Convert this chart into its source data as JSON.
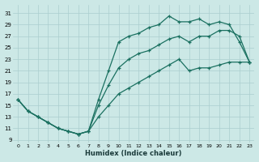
{
  "xlabel": "Humidex (Indice chaleur)",
  "bg_color": "#cce8e6",
  "grid_color": "#aacece",
  "line_color": "#1a7060",
  "xlim": [
    -0.5,
    23.5
  ],
  "ylim": [
    8.5,
    32.5
  ],
  "xticks": [
    0,
    1,
    2,
    3,
    4,
    5,
    6,
    7,
    8,
    9,
    10,
    11,
    12,
    13,
    14,
    15,
    16,
    17,
    18,
    19,
    20,
    21,
    22,
    23
  ],
  "yticks": [
    9,
    11,
    13,
    15,
    17,
    19,
    21,
    23,
    25,
    27,
    29,
    31
  ],
  "upper_x": [
    0,
    1,
    2,
    3,
    4,
    5,
    6,
    7,
    8,
    9,
    10,
    11,
    12,
    13,
    14,
    15,
    16,
    17,
    18,
    19,
    20,
    21,
    22,
    23
  ],
  "upper_y": [
    16,
    14,
    13,
    12,
    11,
    10.5,
    10,
    10.5,
    16,
    21,
    26,
    27,
    27.5,
    28.5,
    29,
    30.5,
    29.5,
    29.5,
    30,
    29,
    29.5,
    29,
    26,
    22.5
  ],
  "mid_x": [
    0,
    1,
    2,
    3,
    4,
    5,
    6,
    7,
    8,
    9,
    10,
    11,
    12,
    13,
    14,
    15,
    16,
    17,
    18,
    19,
    20,
    21,
    22,
    23
  ],
  "mid_y": [
    16,
    14,
    13,
    12,
    11,
    10.5,
    10,
    10.5,
    15,
    18.5,
    21.5,
    23,
    24,
    24.5,
    25.5,
    26.5,
    27,
    26,
    27,
    27,
    28,
    28,
    27,
    22.5
  ],
  "low_x": [
    0,
    1,
    2,
    3,
    4,
    5,
    6,
    7,
    8,
    9,
    10,
    11,
    12,
    13,
    14,
    15,
    16,
    17,
    18,
    19,
    20,
    21,
    22,
    23
  ],
  "low_y": [
    16,
    14,
    13,
    12,
    11,
    10.5,
    10,
    10.5,
    13,
    15,
    17,
    18,
    19,
    20,
    21,
    22,
    23,
    21,
    21.5,
    21.5,
    22,
    22.5,
    22.5,
    22.5
  ]
}
